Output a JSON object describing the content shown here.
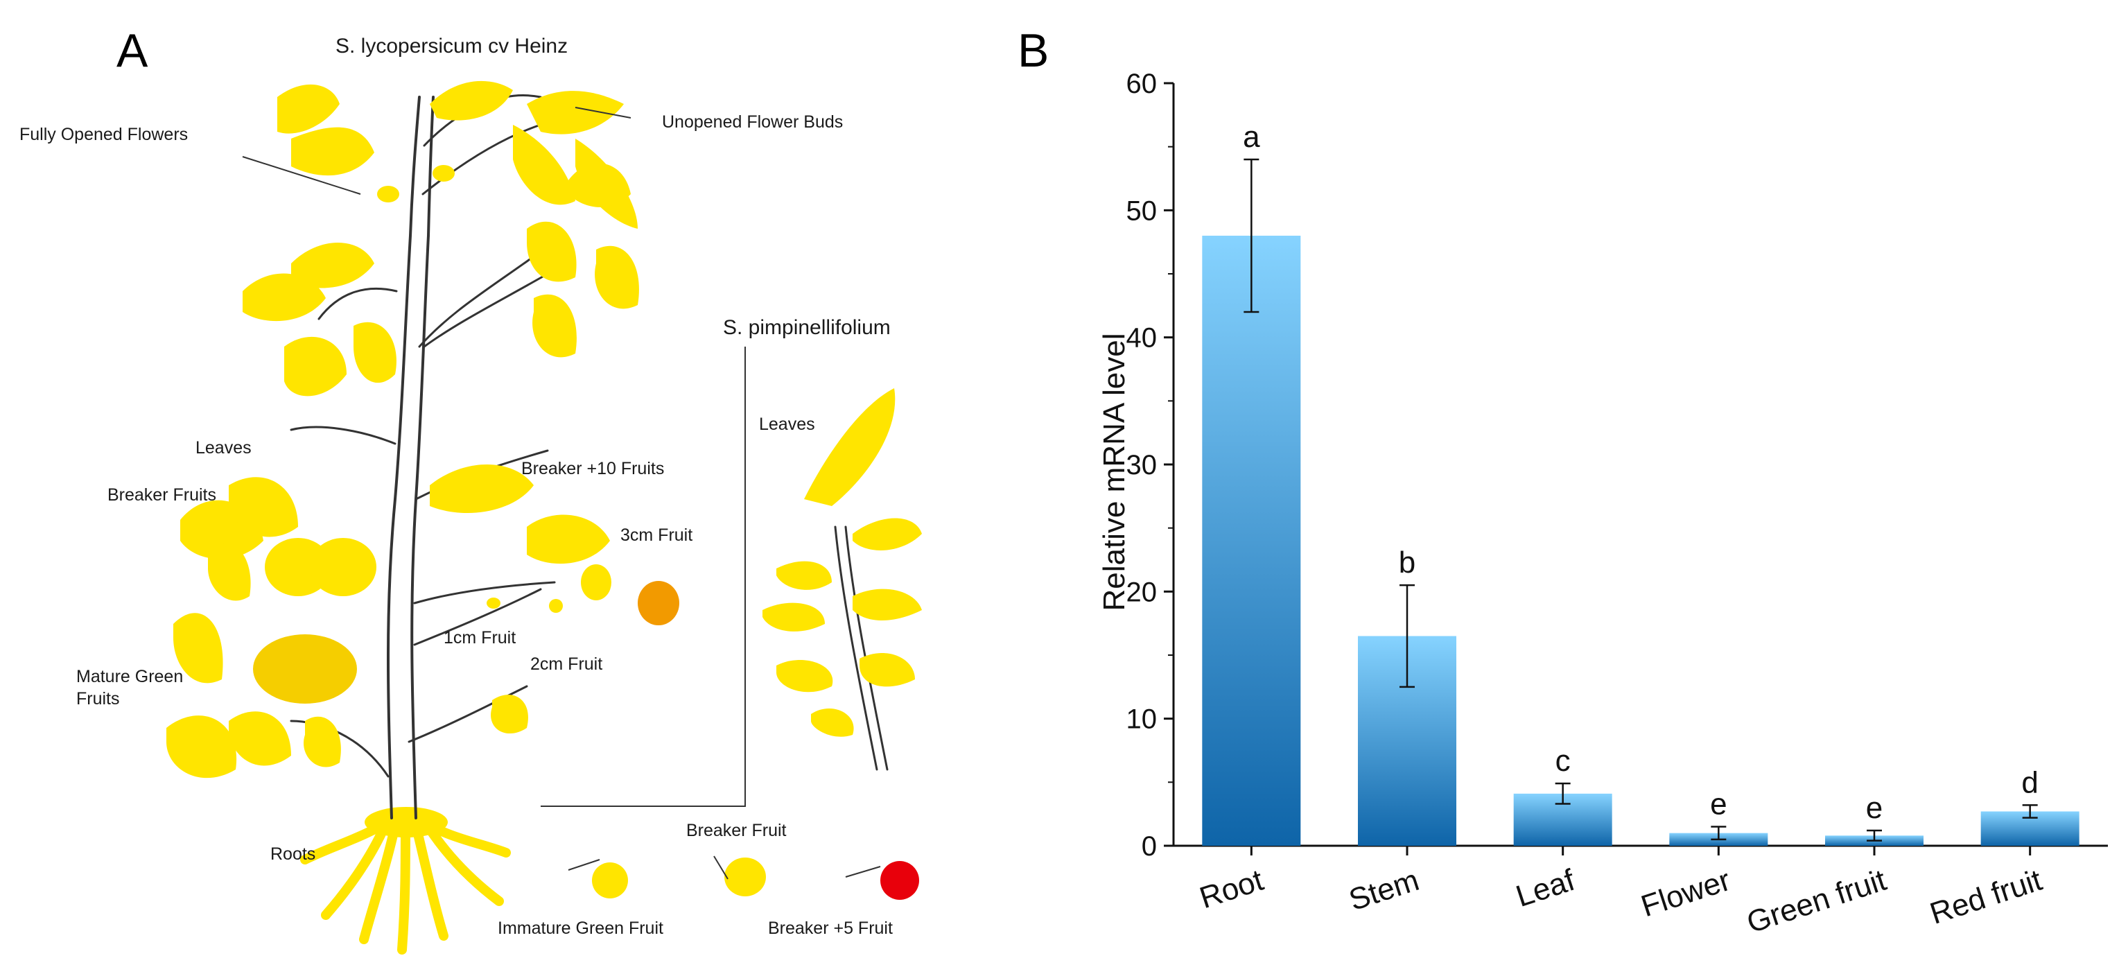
{
  "panel_a": {
    "letter": "A",
    "title": "S. lycopersicum cv Heinz",
    "labels": {
      "fully_opened_flowers": "Fully Opened Flowers",
      "unopened_flower_buds": "Unopened Flower Buds",
      "leaves": "Leaves",
      "breaker_fruits": "Breaker Fruits",
      "breaker_10_fruits": "Breaker +10 Fruits",
      "fruit_3cm": "3cm Fruit",
      "fruit_1cm": "1cm Fruit",
      "fruit_2cm": "2cm Fruit",
      "mature_green_line1": "Mature Green",
      "mature_green_line2": "Fruits",
      "roots": "Roots",
      "pimpinellifolium_title": "S. pimpinellifolium",
      "pimp_leaves": "Leaves",
      "breaker_fruit": "Breaker Fruit",
      "immature_green_fruit": "Immature Green Fruit",
      "breaker_5_fruit": "Breaker +5 Fruit"
    },
    "colors": {
      "leaf": "#FFE500",
      "ripening_fruit": "#F29A00",
      "red_fruit": "#E8000B",
      "outline": "#333333"
    }
  },
  "panel_b": {
    "letter": "B"
  },
  "chart_data": {
    "type": "bar",
    "title": "",
    "xlabel": "",
    "ylabel": "Relative mRNA level",
    "ylim": [
      0,
      60
    ],
    "yticks": [
      0,
      10,
      20,
      30,
      40,
      50,
      60
    ],
    "grid": false,
    "categories": [
      "Root",
      "Stem",
      "Leaf",
      "Flower",
      "Green fruit",
      "Red fruit"
    ],
    "values": [
      48.0,
      16.5,
      4.1,
      1.0,
      0.8,
      2.7
    ],
    "errors": [
      6.0,
      4.0,
      0.8,
      0.5,
      0.4,
      0.5
    ],
    "significance": [
      "a",
      "b",
      "c",
      "e",
      "e",
      "d"
    ],
    "bar_gradient": {
      "top": "#86D3FF",
      "bottom": "#0E64A8"
    }
  }
}
